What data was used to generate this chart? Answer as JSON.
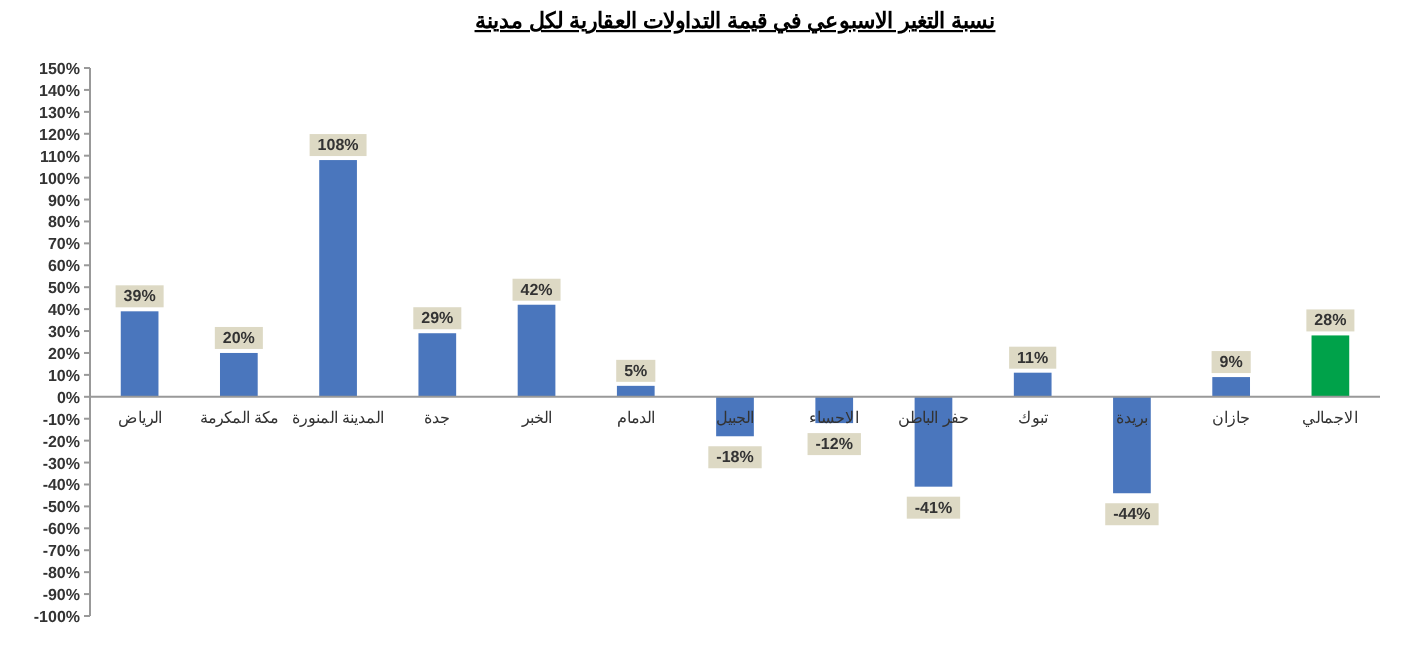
{
  "chart_data": {
    "type": "bar",
    "title": "نسبة التغير الاسبوعي في قيمة التداولات العقارية لكل مدينة",
    "categories": [
      "الرياض",
      "مكة المكرمة",
      "المدينة المنورة",
      "جدة",
      "الخبر",
      "الدمام",
      "الجبيل",
      "الاحساء",
      "حفر الباطن",
      "تبوك",
      "بريدة",
      "جازان",
      "الاجمالي"
    ],
    "values": [
      39,
      20,
      108,
      29,
      42,
      5,
      -18,
      -12,
      -41,
      11,
      -44,
      9,
      28
    ],
    "value_labels": [
      "39%",
      "20%",
      "108%",
      "29%",
      "42%",
      "5%",
      "-18%",
      "-12%",
      "-41%",
      "11%",
      "-44%",
      "9%",
      "28%"
    ],
    "colors": [
      "#4a76bd",
      "#4a76bd",
      "#4a76bd",
      "#4a76bd",
      "#4a76bd",
      "#4a76bd",
      "#4a76bd",
      "#4a76bd",
      "#4a76bd",
      "#4a76bd",
      "#4a76bd",
      "#4a76bd",
      "#00a24a"
    ],
    "ylim": [
      -100,
      150
    ],
    "yticks": [
      {
        "value": -100,
        "label": "-100%"
      },
      {
        "value": -90,
        "label": "-90%"
      },
      {
        "value": -80,
        "label": "-80%"
      },
      {
        "value": -70,
        "label": "-70%"
      },
      {
        "value": -60,
        "label": "-60%"
      },
      {
        "value": -50,
        "label": "-50%"
      },
      {
        "value": -40,
        "label": "-40%"
      },
      {
        "value": -30,
        "label": "-30%"
      },
      {
        "value": -20,
        "label": "-20%"
      },
      {
        "value": -10,
        "label": "-10%"
      },
      {
        "value": 0,
        "label": "0%"
      },
      {
        "value": 10,
        "label": "10%"
      },
      {
        "value": 20,
        "label": "20%"
      },
      {
        "value": 30,
        "label": "30%"
      },
      {
        "value": 40,
        "label": "40%"
      },
      {
        "value": 50,
        "label": "50%"
      },
      {
        "value": 60,
        "label": "60%"
      },
      {
        "value": 70,
        "label": "70%"
      },
      {
        "value": 80,
        "label": "80%"
      },
      {
        "value": 90,
        "label": "90%"
      },
      {
        "value": 100,
        "label": "100%"
      },
      {
        "value": 110,
        "label": "110%"
      },
      {
        "value": 120,
        "label": "120%"
      },
      {
        "value": 130,
        "label": "130%"
      },
      {
        "value": 140,
        "label": "140%"
      },
      {
        "value": 150,
        "label": "150%"
      }
    ],
    "grid": false
  }
}
